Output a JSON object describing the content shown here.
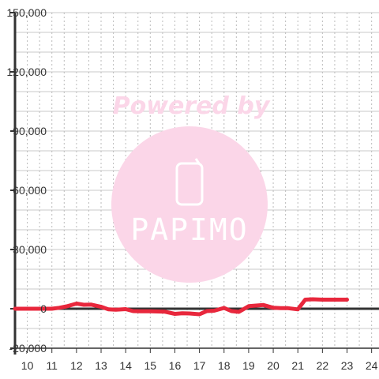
{
  "chart_data": {
    "type": "line",
    "title": "",
    "xlabel": "",
    "ylabel": "",
    "xlim": [
      9.5,
      24.3
    ],
    "ylim": [
      -20000,
      150000
    ],
    "x_ticks": [
      10,
      11,
      12,
      13,
      14,
      15,
      16,
      17,
      18,
      19,
      20,
      21,
      22,
      23,
      24
    ],
    "y_ticks": [
      {
        "value": 150000,
        "label": "150,000"
      },
      {
        "value": 120000,
        "label": "120,000"
      },
      {
        "value": 90000,
        "label": "90,000"
      },
      {
        "value": 60000,
        "label": "60,000"
      },
      {
        "value": 30000,
        "label": "30,000"
      },
      {
        "value": 0,
        "label": "0"
      },
      {
        "value": -20000,
        "label": "-20,000"
      }
    ],
    "grid": true,
    "legend": "none",
    "series": [
      {
        "color": "#e8273c",
        "x": [
          9.5,
          10,
          10.5,
          11,
          11.3,
          11.6,
          12,
          12.3,
          12.6,
          13,
          13.3,
          13.6,
          14,
          14.3,
          14.6,
          15,
          15.3,
          15.6,
          16,
          16.3,
          16.6,
          17,
          17.3,
          17.6,
          18,
          18.3,
          18.6,
          19,
          19.3,
          19.6,
          20,
          20.3,
          20.6,
          21,
          21.3,
          21.6,
          22,
          22.3,
          22.6,
          23
        ],
        "y": [
          0,
          0,
          0,
          0,
          500,
          1200,
          2600,
          2000,
          2100,
          1000,
          -300,
          -500,
          -200,
          -1200,
          -1300,
          -1300,
          -1400,
          -1500,
          -2600,
          -2300,
          -2400,
          -2800,
          -1200,
          -1000,
          400,
          -1200,
          -1600,
          1300,
          1600,
          1900,
          500,
          300,
          300,
          -300,
          4600,
          4800,
          4600,
          4600,
          4600,
          4600
        ]
      }
    ]
  },
  "watermark": {
    "text": "Powered by",
    "logo": "PAPIMO"
  },
  "colors": {
    "line": "#e8273c",
    "watermark": "#fbd6e8",
    "axis": "#333333",
    "grid": "#c8c8c8"
  }
}
